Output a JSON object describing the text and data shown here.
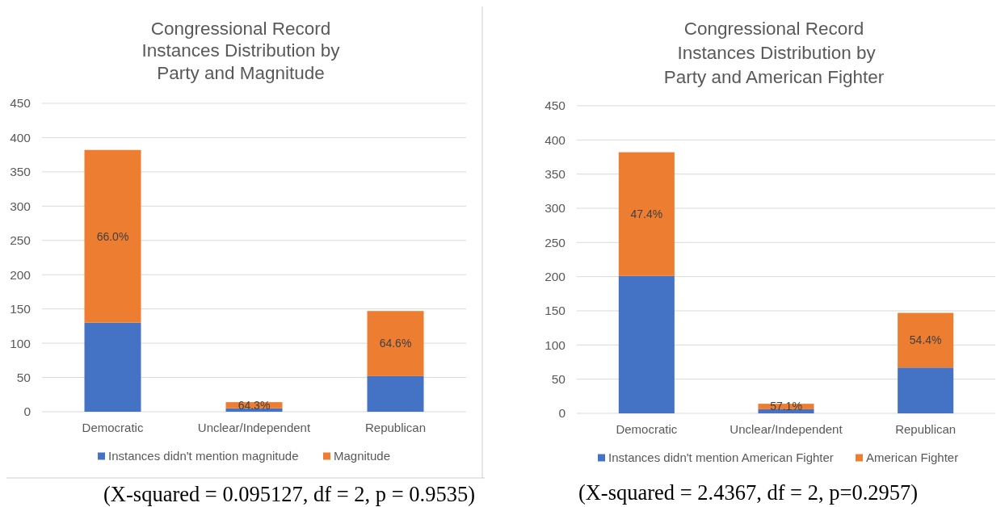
{
  "chart_data": [
    {
      "type": "bar",
      "stacked": true,
      "title": "Congressional Record\nInstances Distribution by\nParty and Magnitude",
      "categories": [
        "Democratic",
        "Unclear/Independent",
        "Republican"
      ],
      "series": [
        {
          "name": "Instances didn't mention magnitude",
          "color": "#4472c4",
          "values": [
            130,
            5,
            52
          ]
        },
        {
          "name": "Magnitude",
          "color": "#ed7d31",
          "values": [
            252,
            9,
            95
          ]
        }
      ],
      "ylim": [
        0,
        450
      ],
      "yticks": [
        0,
        50,
        100,
        150,
        200,
        250,
        300,
        350,
        400,
        450
      ],
      "grid": "y",
      "legend": "bottom",
      "annotations": [
        "66.0%",
        "64.3%",
        "64.6%",
        "(X-squared = 0.095127, df = 2, p = 0.9535)"
      ]
    },
    {
      "type": "bar",
      "stacked": true,
      "title": "Congressional Record\n Instances Distribution by\nParty and American Fighter",
      "categories": [
        "Democratic",
        "Unclear/Independent",
        "Republican"
      ],
      "series": [
        {
          "name": "Instances didn't mention American Fighter",
          "color": "#4472c4",
          "values": [
            201,
            6,
            67
          ]
        },
        {
          "name": "American Fighter",
          "color": "#ed7d31",
          "values": [
            181,
            8,
            80
          ]
        }
      ],
      "ylim": [
        0,
        450
      ],
      "yticks": [
        0,
        50,
        100,
        150,
        200,
        250,
        300,
        350,
        400,
        450
      ],
      "grid": "y",
      "legend": "bottom",
      "annotations": [
        "47.4%",
        "57.1%",
        "54.4%",
        "(X-squared = 2.4367, df = 2, p=0.2957)"
      ]
    }
  ]
}
